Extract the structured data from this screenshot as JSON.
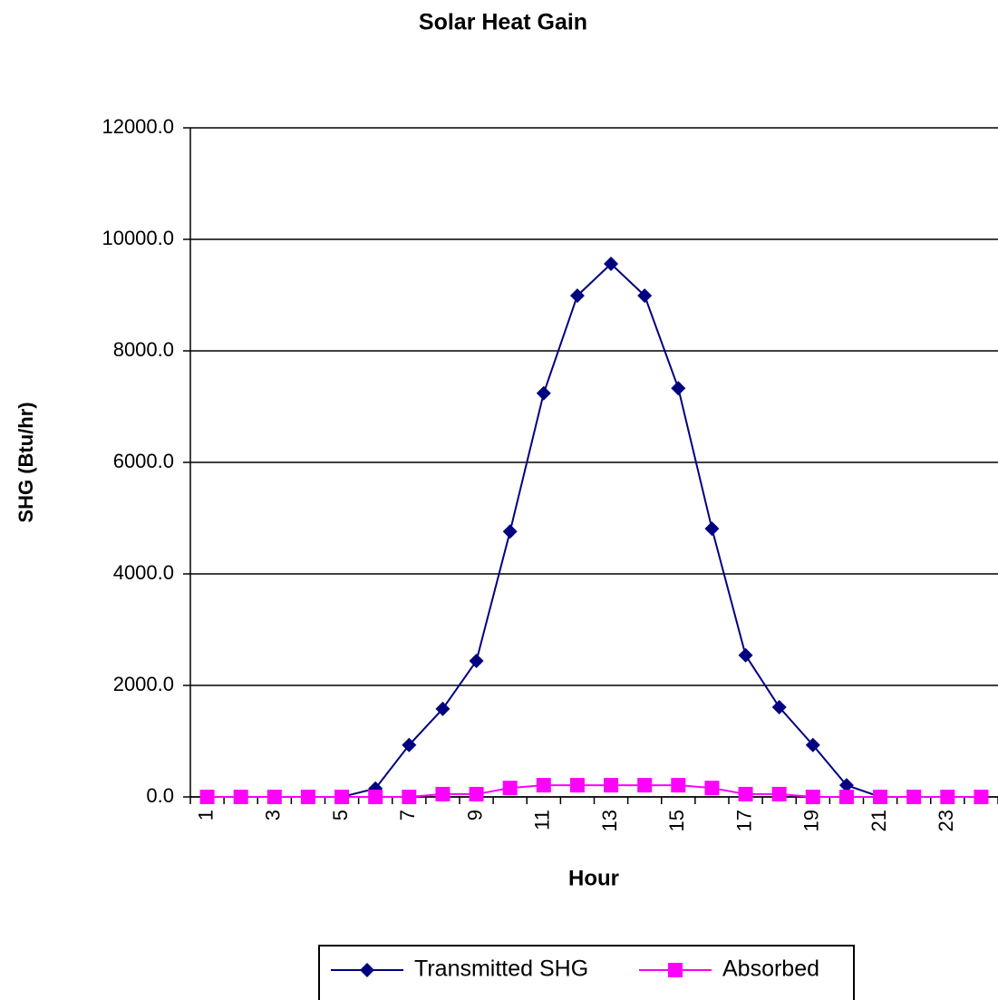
{
  "chart_data": {
    "type": "line",
    "title": "Solar Heat Gain",
    "x_label": "Hour",
    "y_label": "SHG (Btu/hr)",
    "categories": [
      "1",
      null,
      "3",
      null,
      "5",
      null,
      "7",
      null,
      "9",
      null,
      "11",
      null,
      "13",
      null,
      "15",
      null,
      "17",
      null,
      "19",
      null,
      "21",
      null,
      "23",
      null
    ],
    "series": [
      {
        "name": "Transmitted SHG",
        "color": "#000080",
        "marker": "diamond",
        "values": [
          0,
          0,
          0,
          0,
          0,
          150,
          930,
          1580,
          2440,
          4760,
          7240,
          8990,
          9560,
          8990,
          7330,
          4810,
          2540,
          1610,
          930,
          210,
          0,
          0,
          0,
          0
        ]
      },
      {
        "name": "Absorbed",
        "color": "#ff00ff",
        "marker": "square",
        "values": [
          0,
          0,
          0,
          0,
          0,
          0,
          0,
          50,
          50,
          160,
          210,
          210,
          210,
          210,
          210,
          160,
          50,
          50,
          0,
          0,
          0,
          0,
          0,
          0
        ]
      }
    ],
    "ylim": [
      0,
      12000
    ],
    "yticks": [
      {
        "value": 0,
        "label": "0.0"
      },
      {
        "value": 2000,
        "label": "2000.0"
      },
      {
        "value": 4000,
        "label": "4000.0"
      },
      {
        "value": 6000,
        "label": "6000.0"
      },
      {
        "value": 8000,
        "label": "8000.0"
      },
      {
        "value": 10000,
        "label": "10000.0"
      },
      {
        "value": 12000,
        "label": "12000.0"
      }
    ],
    "grid": true,
    "legend": "bottom"
  }
}
